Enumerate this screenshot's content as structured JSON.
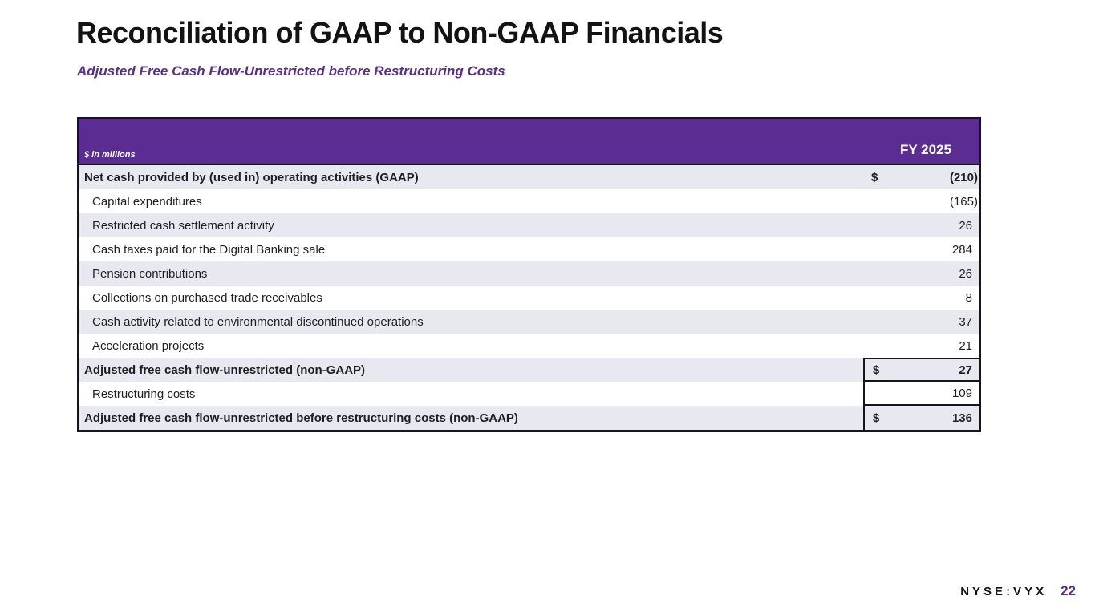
{
  "slide": {
    "title": "Reconciliation of GAAP to Non-GAAP Financials",
    "subtitle": "Adjusted Free Cash Flow-Unrestricted before Restructuring Costs"
  },
  "table": {
    "unit_label": "$ in millions",
    "column_header": "FY 2025",
    "rows": [
      {
        "label": "Net cash provided by (used in) operating activities (GAAP)",
        "currency": "$",
        "value": "(210)",
        "bold": true,
        "indent": false,
        "box_top": false,
        "box_bottom": false,
        "box_left": false
      },
      {
        "label": "Capital expenditures",
        "currency": "",
        "value": "(165)",
        "bold": false,
        "indent": true,
        "box_top": false,
        "box_bottom": false,
        "box_left": false
      },
      {
        "label": "Restricted cash settlement activity",
        "currency": "",
        "value": "26",
        "bold": false,
        "indent": true,
        "box_top": false,
        "box_bottom": false,
        "box_left": false
      },
      {
        "label": "Cash taxes paid for the Digital Banking sale",
        "currency": "",
        "value": "284",
        "bold": false,
        "indent": true,
        "box_top": false,
        "box_bottom": false,
        "box_left": false
      },
      {
        "label": "Pension contributions",
        "currency": "",
        "value": "26",
        "bold": false,
        "indent": true,
        "box_top": false,
        "box_bottom": false,
        "box_left": false
      },
      {
        "label": "Collections on purchased trade receivables",
        "currency": "",
        "value": "8",
        "bold": false,
        "indent": true,
        "box_top": false,
        "box_bottom": false,
        "box_left": false
      },
      {
        "label": "Cash activity related to environmental discontinued operations",
        "currency": "",
        "value": "37",
        "bold": false,
        "indent": true,
        "box_top": false,
        "box_bottom": false,
        "box_left": false
      },
      {
        "label": "Acceleration projects",
        "currency": "",
        "value": "21",
        "bold": false,
        "indent": true,
        "box_top": false,
        "box_bottom": false,
        "box_left": false
      },
      {
        "label": "Adjusted free cash flow-unrestricted (non-GAAP)",
        "currency": "$",
        "value": "27",
        "bold": true,
        "indent": false,
        "box_top": true,
        "box_bottom": true,
        "box_left": true
      },
      {
        "label": "Restructuring costs",
        "currency": "",
        "value": "109",
        "bold": false,
        "indent": true,
        "box_top": false,
        "box_bottom": true,
        "box_left": true
      },
      {
        "label": "Adjusted free cash flow-unrestricted before restructuring costs (non-GAAP)",
        "currency": "$",
        "value": "136",
        "bold": true,
        "indent": false,
        "box_top": false,
        "box_bottom": false,
        "box_left": true
      }
    ]
  },
  "footer": {
    "ticker": "NYSE:VYX",
    "page_number": "22"
  },
  "colors": {
    "accent_purple": "#5b2c91",
    "row_shaded": "#e8e8f0",
    "table_border": "#16161a",
    "header_text": "#ffffff"
  }
}
